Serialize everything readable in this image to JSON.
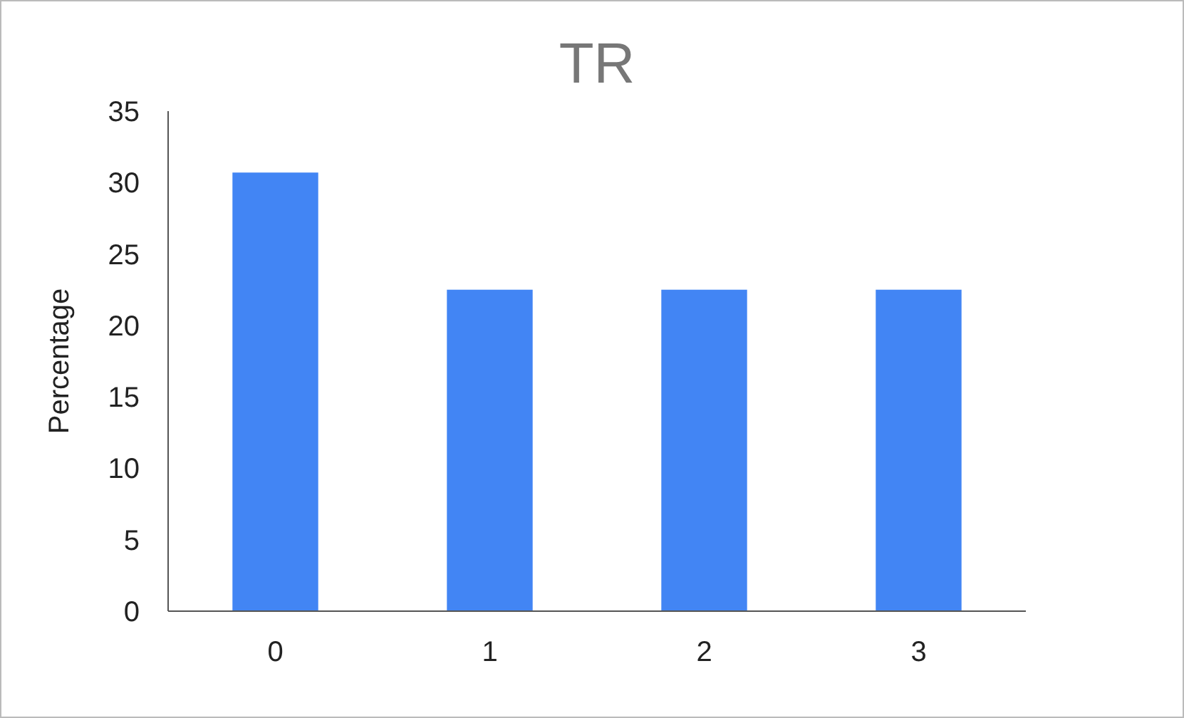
{
  "chart_data": {
    "type": "bar",
    "title": "TR",
    "ylabel": "Percentage",
    "categories": [
      "0",
      "1",
      "2",
      "3"
    ],
    "values": [
      30.7,
      22.5,
      22.5,
      22.5
    ],
    "color": "#4285f4",
    "ylim": [
      0,
      35
    ],
    "yticks": [
      0,
      5,
      10,
      15,
      20,
      25,
      30,
      35
    ],
    "grid": false
  }
}
